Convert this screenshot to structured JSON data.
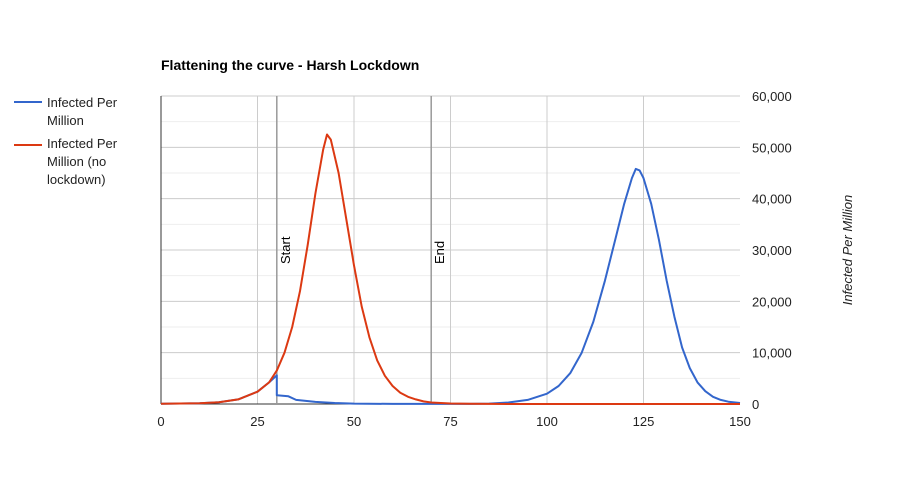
{
  "chart_data": {
    "type": "line",
    "title": "Flattening the curve - Harsh Lockdown",
    "xlabel": "",
    "ylabel": "Infected Per Million",
    "xlim": [
      0,
      150
    ],
    "ylim": [
      0,
      60000
    ],
    "x_ticks": [
      "0",
      "25",
      "50",
      "75",
      "100",
      "125",
      "150"
    ],
    "y_ticks": [
      "0",
      "10,000",
      "20,000",
      "30,000",
      "40,000",
      "50,000",
      "60,000"
    ],
    "grid": true,
    "y_axis_side": "right",
    "legend_position": "left",
    "annotations": [
      {
        "x": 30,
        "label": "Start"
      },
      {
        "x": 70,
        "label": "End"
      }
    ],
    "series": [
      {
        "name": "Infected Per Million",
        "color": "#3366cc",
        "points": [
          [
            0,
            40
          ],
          [
            10,
            150
          ],
          [
            15,
            350
          ],
          [
            20,
            900
          ],
          [
            25,
            2400
          ],
          [
            28,
            4200
          ],
          [
            30,
            5600
          ],
          [
            30,
            1700
          ],
          [
            33,
            1500
          ],
          [
            35,
            800
          ],
          [
            40,
            400
          ],
          [
            45,
            200
          ],
          [
            50,
            80
          ],
          [
            60,
            20
          ],
          [
            70,
            10
          ],
          [
            80,
            20
          ],
          [
            85,
            80
          ],
          [
            90,
            300
          ],
          [
            95,
            800
          ],
          [
            100,
            2000
          ],
          [
            103,
            3500
          ],
          [
            106,
            6000
          ],
          [
            109,
            10000
          ],
          [
            112,
            16000
          ],
          [
            115,
            24000
          ],
          [
            118,
            33000
          ],
          [
            120,
            39000
          ],
          [
            122,
            44000
          ],
          [
            123,
            45800
          ],
          [
            124,
            45500
          ],
          [
            125,
            44000
          ],
          [
            127,
            39000
          ],
          [
            129,
            32000
          ],
          [
            131,
            24000
          ],
          [
            133,
            17000
          ],
          [
            135,
            11000
          ],
          [
            137,
            7000
          ],
          [
            139,
            4200
          ],
          [
            141,
            2500
          ],
          [
            143,
            1400
          ],
          [
            145,
            800
          ],
          [
            147,
            450
          ],
          [
            150,
            200
          ]
        ]
      },
      {
        "name": "Infected Per Million (no lockdown)",
        "color": "#dc3912",
        "points": [
          [
            0,
            40
          ],
          [
            10,
            150
          ],
          [
            15,
            350
          ],
          [
            20,
            900
          ],
          [
            25,
            2400
          ],
          [
            28,
            4200
          ],
          [
            30,
            6500
          ],
          [
            32,
            10000
          ],
          [
            34,
            15000
          ],
          [
            36,
            22000
          ],
          [
            38,
            31000
          ],
          [
            40,
            41000
          ],
          [
            42,
            49500
          ],
          [
            43,
            52500
          ],
          [
            44,
            51500
          ],
          [
            46,
            45000
          ],
          [
            48,
            36000
          ],
          [
            50,
            27000
          ],
          [
            52,
            19000
          ],
          [
            54,
            13000
          ],
          [
            56,
            8500
          ],
          [
            58,
            5500
          ],
          [
            60,
            3500
          ],
          [
            62,
            2200
          ],
          [
            64,
            1400
          ],
          [
            66,
            900
          ],
          [
            68,
            500
          ],
          [
            70,
            300
          ],
          [
            75,
            100
          ],
          [
            80,
            30
          ],
          [
            90,
            5
          ],
          [
            100,
            0
          ],
          [
            150,
            0
          ]
        ]
      }
    ]
  }
}
